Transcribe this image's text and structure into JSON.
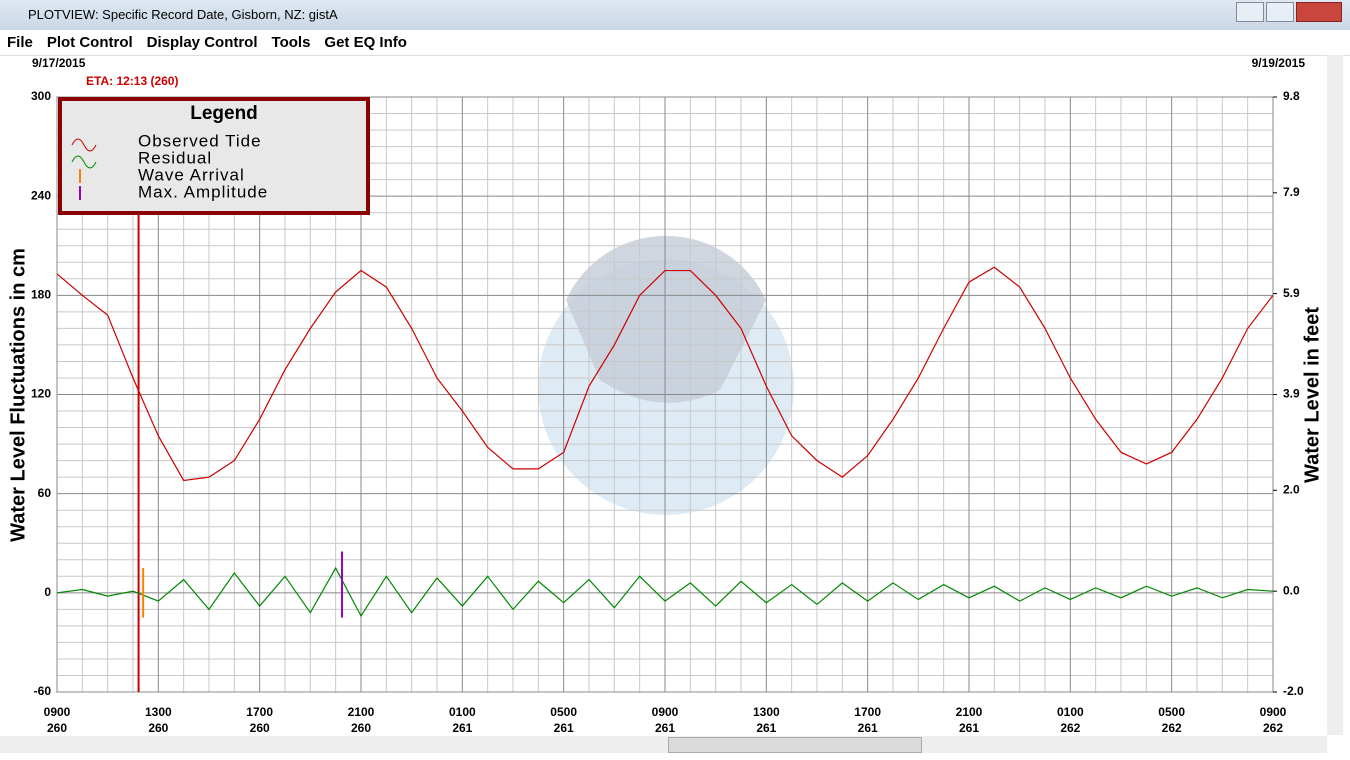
{
  "window": {
    "title": "PLOTVIEW: Specific Record Date, Gisborn, NZ: gistA",
    "menu": [
      "File",
      "Plot Control",
      "Display Control",
      "Tools",
      "Get EQ Info"
    ]
  },
  "chart_data": {
    "type": "line",
    "start_date": "9/17/2015",
    "end_date": "9/19/2015",
    "eta_label": "ETA: 12:13 (260)",
    "eta_x": 3.22,
    "legend_title": "Legend",
    "legend": "upper left",
    "ylabel": "Water Level Fluctuations in cm",
    "y2label": "Water Level in feet",
    "x": [
      0,
      1,
      2,
      3,
      4,
      5,
      6,
      7,
      8,
      9,
      10,
      11,
      12,
      13,
      14,
      15,
      16,
      17,
      18,
      19,
      20,
      21,
      22,
      23,
      24,
      25,
      26,
      27,
      28,
      29,
      30,
      31,
      32,
      33,
      34,
      35,
      36,
      37,
      38,
      39,
      40,
      41,
      42,
      43,
      44,
      45,
      46,
      47,
      48
    ],
    "xlim": [
      0,
      48
    ],
    "xticks": [
      {
        "value": 0,
        "label": "0900\n260"
      },
      {
        "value": 4,
        "label": "1300\n260"
      },
      {
        "value": 8,
        "label": "1700\n260"
      },
      {
        "value": 12,
        "label": "2100\n260"
      },
      {
        "value": 16,
        "label": "0100\n261"
      },
      {
        "value": 20,
        "label": "0500\n261"
      },
      {
        "value": 24,
        "label": "0900\n261"
      },
      {
        "value": 28,
        "label": "1300\n261"
      },
      {
        "value": 32,
        "label": "1700\n261"
      },
      {
        "value": 36,
        "label": "2100\n261"
      },
      {
        "value": 40,
        "label": "0100\n262"
      },
      {
        "value": 44,
        "label": "0500\n262"
      },
      {
        "value": 48,
        "label": "0900\n262"
      }
    ],
    "ylim": [
      -60,
      300
    ],
    "yticks": [
      -60,
      0,
      60,
      120,
      180,
      240,
      300
    ],
    "y2lim": [
      -2.0,
      9.8
    ],
    "y2ticks": [
      {
        "value": -2.0,
        "label": "-2.0"
      },
      {
        "value": 0.0,
        "label": "0.0"
      },
      {
        "value": 2.0,
        "label": "2.0"
      },
      3.9,
      5.9,
      7.9,
      9.8
    ],
    "grid": true,
    "series": [
      {
        "name": "Observed Tide",
        "color": "#cc0000",
        "values": [
          193,
          180,
          168,
          130,
          95,
          68,
          70,
          80,
          105,
          135,
          160,
          182,
          195,
          185,
          160,
          130,
          110,
          88,
          75,
          75,
          85,
          125,
          150,
          180,
          195,
          195,
          180,
          160,
          125,
          95,
          80,
          70,
          83,
          105,
          130,
          160,
          188,
          197,
          185,
          160,
          130,
          105,
          85,
          78,
          85,
          105,
          130,
          160,
          180
        ]
      },
      {
        "name": "Residual",
        "color": "#008800",
        "values": [
          0,
          2,
          -2,
          1,
          -5,
          8,
          -10,
          12,
          -8,
          10,
          -12,
          15,
          -14,
          10,
          -12,
          9,
          -8,
          10,
          -10,
          7,
          -6,
          8,
          -9,
          10,
          -5,
          6,
          -8,
          7,
          -6,
          5,
          -7,
          6,
          -5,
          6,
          -4,
          5,
          -3,
          4,
          -5,
          3,
          -4,
          3,
          -3,
          4,
          -2,
          3,
          -3,
          2,
          1
        ]
      }
    ],
    "markers": [
      {
        "name": "Wave Arrival",
        "color": "#ff8000",
        "x": 3.4,
        "range": [
          -15,
          15
        ]
      },
      {
        "name": "Max. Amplitude",
        "color": "#a000c0",
        "x": 11.25,
        "range": [
          -15,
          25
        ]
      }
    ]
  }
}
